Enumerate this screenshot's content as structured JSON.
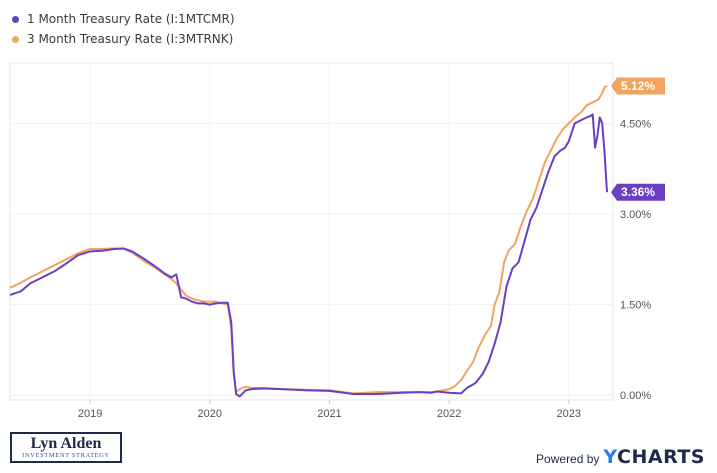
{
  "legend": {
    "items": [
      {
        "label": "1 Month Treasury Rate (I:1MTCMR)",
        "color": "#6a3fc4"
      },
      {
        "label": "3 Month Treasury Rate (I:3MTRNK)",
        "color": "#f0a45e"
      }
    ]
  },
  "chart_data": {
    "type": "line",
    "title": "",
    "xlabel": "",
    "ylabel": "",
    "xlim": [
      2018.33,
      2023.37
    ],
    "ylim": [
      -0.08,
      5.5
    ],
    "x_ticks": [
      2019,
      2020,
      2021,
      2022,
      2023
    ],
    "x_tick_labels": [
      "2019",
      "2020",
      "2021",
      "2022",
      "2023"
    ],
    "y_ticks": [
      0,
      1.5,
      3.0,
      4.5
    ],
    "y_tick_labels": [
      "0.00%",
      "1.50%",
      "3.00%",
      "4.50%"
    ],
    "series": [
      {
        "name": "1 Month Treasury Rate (I:1MTCMR)",
        "color": "#6a3fc4",
        "end_label": "3.36%",
        "points": [
          [
            2018.33,
            1.66
          ],
          [
            2018.42,
            1.72
          ],
          [
            2018.5,
            1.85
          ],
          [
            2018.6,
            1.95
          ],
          [
            2018.7,
            2.05
          ],
          [
            2018.8,
            2.18
          ],
          [
            2018.9,
            2.32
          ],
          [
            2019.0,
            2.38
          ],
          [
            2019.1,
            2.39
          ],
          [
            2019.2,
            2.42
          ],
          [
            2019.28,
            2.43
          ],
          [
            2019.35,
            2.38
          ],
          [
            2019.45,
            2.26
          ],
          [
            2019.55,
            2.12
          ],
          [
            2019.62,
            2.02
          ],
          [
            2019.68,
            1.95
          ],
          [
            2019.72,
            2.0
          ],
          [
            2019.76,
            1.62
          ],
          [
            2019.8,
            1.6
          ],
          [
            2019.85,
            1.55
          ],
          [
            2019.9,
            1.52
          ],
          [
            2019.95,
            1.52
          ],
          [
            2020.0,
            1.5
          ],
          [
            2020.05,
            1.52
          ],
          [
            2020.1,
            1.53
          ],
          [
            2020.15,
            1.53
          ],
          [
            2020.18,
            1.2
          ],
          [
            2020.2,
            0.4
          ],
          [
            2020.22,
            0.02
          ],
          [
            2020.25,
            -0.02
          ],
          [
            2020.3,
            0.08
          ],
          [
            2020.35,
            0.1
          ],
          [
            2020.45,
            0.11
          ],
          [
            2020.6,
            0.1
          ],
          [
            2020.8,
            0.08
          ],
          [
            2021.0,
            0.07
          ],
          [
            2021.2,
            0.02
          ],
          [
            2021.4,
            0.02
          ],
          [
            2021.6,
            0.04
          ],
          [
            2021.75,
            0.05
          ],
          [
            2021.85,
            0.04
          ],
          [
            2021.9,
            0.06
          ],
          [
            2022.0,
            0.04
          ],
          [
            2022.1,
            0.03
          ],
          [
            2022.15,
            0.12
          ],
          [
            2022.22,
            0.2
          ],
          [
            2022.28,
            0.35
          ],
          [
            2022.33,
            0.55
          ],
          [
            2022.38,
            0.85
          ],
          [
            2022.43,
            1.2
          ],
          [
            2022.48,
            1.8
          ],
          [
            2022.53,
            2.1
          ],
          [
            2022.58,
            2.2
          ],
          [
            2022.63,
            2.55
          ],
          [
            2022.68,
            2.9
          ],
          [
            2022.73,
            3.1
          ],
          [
            2022.78,
            3.4
          ],
          [
            2022.83,
            3.7
          ],
          [
            2022.88,
            3.95
          ],
          [
            2022.93,
            4.05
          ],
          [
            2022.97,
            4.1
          ],
          [
            2023.0,
            4.2
          ],
          [
            2023.05,
            4.5
          ],
          [
            2023.1,
            4.55
          ],
          [
            2023.15,
            4.6
          ],
          [
            2023.18,
            4.62
          ],
          [
            2023.2,
            4.65
          ],
          [
            2023.22,
            4.1
          ],
          [
            2023.24,
            4.3
          ],
          [
            2023.26,
            4.6
          ],
          [
            2023.28,
            4.5
          ],
          [
            2023.3,
            4.0
          ],
          [
            2023.32,
            3.36
          ]
        ]
      },
      {
        "name": "3 Month Treasury Rate (I:3MTRNK)",
        "color": "#f0a45e",
        "end_label": "5.12%",
        "points": [
          [
            2018.33,
            1.78
          ],
          [
            2018.42,
            1.86
          ],
          [
            2018.5,
            1.95
          ],
          [
            2018.6,
            2.05
          ],
          [
            2018.7,
            2.15
          ],
          [
            2018.8,
            2.25
          ],
          [
            2018.9,
            2.35
          ],
          [
            2019.0,
            2.42
          ],
          [
            2019.1,
            2.42
          ],
          [
            2019.2,
            2.43
          ],
          [
            2019.28,
            2.42
          ],
          [
            2019.35,
            2.36
          ],
          [
            2019.45,
            2.22
          ],
          [
            2019.55,
            2.1
          ],
          [
            2019.62,
            2.0
          ],
          [
            2019.68,
            1.92
          ],
          [
            2019.72,
            1.85
          ],
          [
            2019.76,
            1.75
          ],
          [
            2019.8,
            1.65
          ],
          [
            2019.85,
            1.6
          ],
          [
            2019.9,
            1.57
          ],
          [
            2019.95,
            1.55
          ],
          [
            2020.0,
            1.55
          ],
          [
            2020.05,
            1.55
          ],
          [
            2020.1,
            1.52
          ],
          [
            2020.15,
            1.5
          ],
          [
            2020.18,
            1.1
          ],
          [
            2020.2,
            0.35
          ],
          [
            2020.22,
            0.05
          ],
          [
            2020.25,
            0.1
          ],
          [
            2020.3,
            0.14
          ],
          [
            2020.35,
            0.12
          ],
          [
            2020.45,
            0.12
          ],
          [
            2020.6,
            0.1
          ],
          [
            2020.8,
            0.09
          ],
          [
            2021.0,
            0.08
          ],
          [
            2021.2,
            0.03
          ],
          [
            2021.4,
            0.05
          ],
          [
            2021.6,
            0.05
          ],
          [
            2021.75,
            0.05
          ],
          [
            2021.85,
            0.05
          ],
          [
            2021.9,
            0.06
          ],
          [
            2022.0,
            0.1
          ],
          [
            2022.05,
            0.15
          ],
          [
            2022.1,
            0.25
          ],
          [
            2022.15,
            0.4
          ],
          [
            2022.2,
            0.55
          ],
          [
            2022.25,
            0.8
          ],
          [
            2022.3,
            1.0
          ],
          [
            2022.35,
            1.15
          ],
          [
            2022.38,
            1.5
          ],
          [
            2022.42,
            1.7
          ],
          [
            2022.46,
            2.2
          ],
          [
            2022.5,
            2.4
          ],
          [
            2022.55,
            2.5
          ],
          [
            2022.6,
            2.8
          ],
          [
            2022.65,
            3.05
          ],
          [
            2022.7,
            3.25
          ],
          [
            2022.75,
            3.55
          ],
          [
            2022.8,
            3.85
          ],
          [
            2022.85,
            4.05
          ],
          [
            2022.9,
            4.25
          ],
          [
            2022.95,
            4.4
          ],
          [
            2023.0,
            4.5
          ],
          [
            2023.05,
            4.6
          ],
          [
            2023.1,
            4.68
          ],
          [
            2023.15,
            4.8
          ],
          [
            2023.2,
            4.85
          ],
          [
            2023.25,
            4.9
          ],
          [
            2023.28,
            5.0
          ],
          [
            2023.3,
            5.1
          ],
          [
            2023.32,
            5.12
          ]
        ]
      }
    ]
  },
  "branding": {
    "author_name": "Lyn Alden",
    "author_sub": "INVESTMENT STRATEGY",
    "powered_by": "Powered by",
    "ycharts_y": "Y",
    "ycharts_rest": "CHARTS"
  }
}
